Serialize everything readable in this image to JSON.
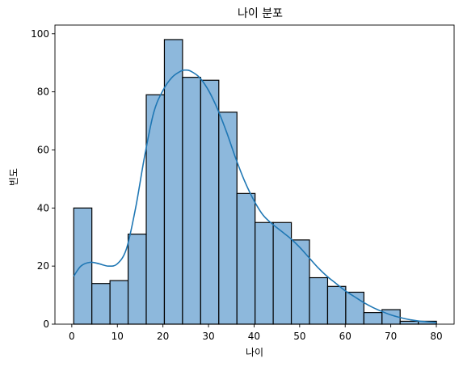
{
  "chart_data": {
    "type": "histogram",
    "title": "나이 분포",
    "xlabel": "나이",
    "ylabel": "빈도",
    "xlim": [
      -3.7,
      83.9
    ],
    "ylim": [
      0,
      103
    ],
    "xticks": [
      0,
      10,
      20,
      30,
      40,
      50,
      60,
      70,
      80
    ],
    "yticks": [
      0,
      20,
      40,
      60,
      80,
      100
    ],
    "bins": [
      {
        "x0": 0.42,
        "x1": 4.4,
        "count": 40
      },
      {
        "x0": 4.4,
        "x1": 8.38,
        "count": 14
      },
      {
        "x0": 8.38,
        "x1": 12.36,
        "count": 15
      },
      {
        "x0": 12.36,
        "x1": 16.34,
        "count": 31
      },
      {
        "x0": 16.34,
        "x1": 20.32,
        "count": 79
      },
      {
        "x0": 20.32,
        "x1": 24.3,
        "count": 98
      },
      {
        "x0": 24.3,
        "x1": 28.28,
        "count": 85
      },
      {
        "x0": 28.28,
        "x1": 32.26,
        "count": 84
      },
      {
        "x0": 32.26,
        "x1": 36.24,
        "count": 73
      },
      {
        "x0": 36.24,
        "x1": 40.22,
        "count": 45
      },
      {
        "x0": 40.22,
        "x1": 44.2,
        "count": 35
      },
      {
        "x0": 44.2,
        "x1": 48.18,
        "count": 35
      },
      {
        "x0": 48.18,
        "x1": 52.16,
        "count": 29
      },
      {
        "x0": 52.16,
        "x1": 56.14,
        "count": 16
      },
      {
        "x0": 56.14,
        "x1": 60.12,
        "count": 13
      },
      {
        "x0": 60.12,
        "x1": 64.1,
        "count": 11
      },
      {
        "x0": 64.1,
        "x1": 68.08,
        "count": 4
      },
      {
        "x0": 68.08,
        "x1": 72.06,
        "count": 5
      },
      {
        "x0": 72.06,
        "x1": 76.04,
        "count": 1
      },
      {
        "x0": 76.04,
        "x1": 80.02,
        "count": 1
      }
    ],
    "kde": {
      "x": [
        0.42,
        2,
        4,
        6,
        8,
        10,
        12,
        14,
        16,
        18,
        20,
        22,
        24,
        25,
        26,
        28,
        30,
        32,
        34,
        36,
        38,
        40,
        42,
        44,
        46,
        48,
        50,
        52,
        54,
        56,
        58,
        60,
        62,
        64,
        66,
        68,
        70,
        72,
        74,
        76,
        78,
        80
      ],
      "y": [
        16.5,
        20.0,
        21.3,
        20.8,
        20.0,
        20.8,
        26.0,
        40.0,
        58.0,
        73.0,
        80.5,
        85.0,
        87.2,
        87.5,
        87.2,
        85.0,
        80.5,
        74.0,
        66.0,
        57.0,
        49.0,
        42.5,
        37.5,
        34.5,
        32.0,
        29.5,
        26.5,
        23.0,
        19.5,
        16.5,
        14.0,
        11.5,
        9.5,
        7.5,
        5.8,
        4.4,
        3.2,
        2.3,
        1.6,
        1.1,
        0.8,
        0.6
      ]
    },
    "bar_fill": "#8db8dc",
    "bar_stroke": "#000000",
    "kde_color": "#1f77b4",
    "grid": false,
    "legend": "none"
  }
}
